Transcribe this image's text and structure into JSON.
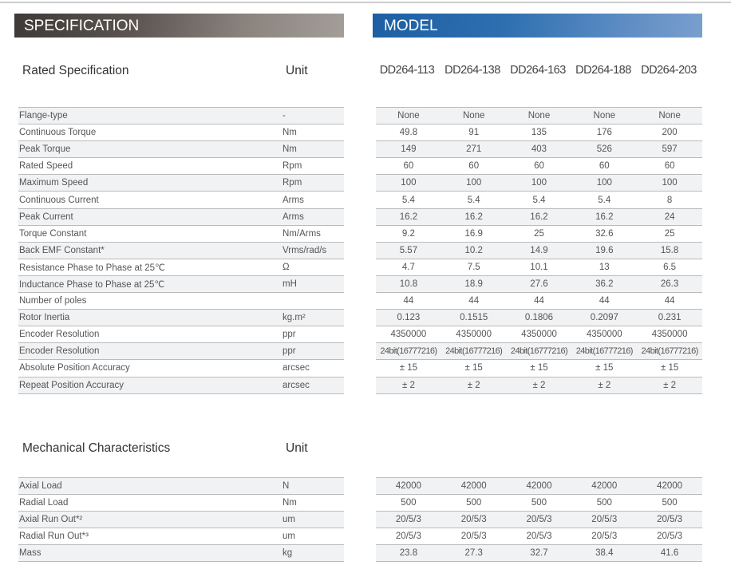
{
  "header": {
    "spec": "SPECIFICATION",
    "model": "MODEL"
  },
  "rated": {
    "title": "Rated Specification",
    "unit": "Unit",
    "models": [
      "DD264-113",
      "DD264-138",
      "DD264-163",
      "DD264-188",
      "DD264-203"
    ],
    "rows": [
      {
        "name": "Flange-type",
        "unit": "-",
        "v": [
          "None",
          "None",
          "None",
          "None",
          "None"
        ]
      },
      {
        "name": "Continuous Torque",
        "unit": "Nm",
        "v": [
          "49.8",
          "91",
          "135",
          "176",
          "200"
        ]
      },
      {
        "name": "Peak Torque",
        "unit": "Nm",
        "v": [
          "149",
          "271",
          "403",
          "526",
          "597"
        ]
      },
      {
        "name": "Rated Speed",
        "unit": "Rpm",
        "v": [
          "60",
          "60",
          "60",
          "60",
          "60"
        ]
      },
      {
        "name": "Maximum Speed",
        "unit": "Rpm",
        "v": [
          "100",
          "100",
          "100",
          "100",
          "100"
        ]
      },
      {
        "name": "Continuous Current",
        "unit": "Arms",
        "v": [
          "5.4",
          "5.4",
          "5.4",
          "5.4",
          "8"
        ]
      },
      {
        "name": "Peak Current",
        "unit": "Arms",
        "v": [
          "16.2",
          "16.2",
          "16.2",
          "16.2",
          "24"
        ]
      },
      {
        "name": "Torque Constant",
        "unit": "Nm/Arms",
        "v": [
          "9.2",
          "16.9",
          "25",
          "32.6",
          "25"
        ]
      },
      {
        "name": "Back EMF Constant*",
        "unit": "Vrms/rad/s",
        "v": [
          "5.57",
          "10.2",
          "14.9",
          "19.6",
          "15.8"
        ]
      },
      {
        "name": "Resistance Phase to Phase at 25℃",
        "unit": "Ω",
        "v": [
          "4.7",
          "7.5",
          "10.1",
          "13",
          "6.5"
        ]
      },
      {
        "name": "Inductance Phase to Phase at 25℃",
        "unit": "mH",
        "v": [
          "10.8",
          "18.9",
          "27.6",
          "36.2",
          "26.3"
        ]
      },
      {
        "name": "Number of poles",
        "unit": "",
        "v": [
          "44",
          "44",
          "44",
          "44",
          "44"
        ]
      },
      {
        "name": "Rotor Inertia",
        "unit": "kg.m²",
        "v": [
          "0.123",
          "0.1515",
          "0.1806",
          "0.2097",
          "0.231"
        ]
      },
      {
        "name": "Encoder Resolution",
        "unit": "ppr",
        "v": [
          "4350000",
          "4350000",
          "4350000",
          "4350000",
          "4350000"
        ]
      },
      {
        "name": "Encoder Resolution",
        "unit": "ppr",
        "v": [
          "24bit(16777216)",
          "24bit(16777216)",
          "24bit(16777216)",
          "24bit(16777216)",
          "24bit(16777216)"
        ]
      },
      {
        "name": "Absolute Position Accuracy",
        "unit": "arcsec",
        "v": [
          "± 15",
          "± 15",
          "± 15",
          "± 15",
          "± 15"
        ]
      },
      {
        "name": "Repeat Position Accuracy",
        "unit": "arcsec",
        "v": [
          "± 2",
          "± 2",
          "± 2",
          "± 2",
          "± 2"
        ]
      }
    ]
  },
  "mech": {
    "title": "Mechanical  Characteristics",
    "unit": "Unit",
    "rows": [
      {
        "name": "Axial Load",
        "unit": "N",
        "v": [
          "42000",
          "42000",
          "42000",
          "42000",
          "42000"
        ]
      },
      {
        "name": "Radial Load",
        "unit": "Nm",
        "v": [
          "500",
          "500",
          "500",
          "500",
          "500"
        ]
      },
      {
        "name": "Axial Run Out*²",
        "unit": "um",
        "v": [
          "20/5/3",
          "20/5/3",
          "20/5/3",
          "20/5/3",
          "20/5/3"
        ]
      },
      {
        "name": "Radial Run Out*³",
        "unit": "um",
        "v": [
          "20/5/3",
          "20/5/3",
          "20/5/3",
          "20/5/3",
          "20/5/3"
        ]
      },
      {
        "name": "Mass",
        "unit": "kg",
        "v": [
          "23.8",
          "27.3",
          "32.7",
          "38.4",
          "41.6"
        ]
      }
    ]
  }
}
